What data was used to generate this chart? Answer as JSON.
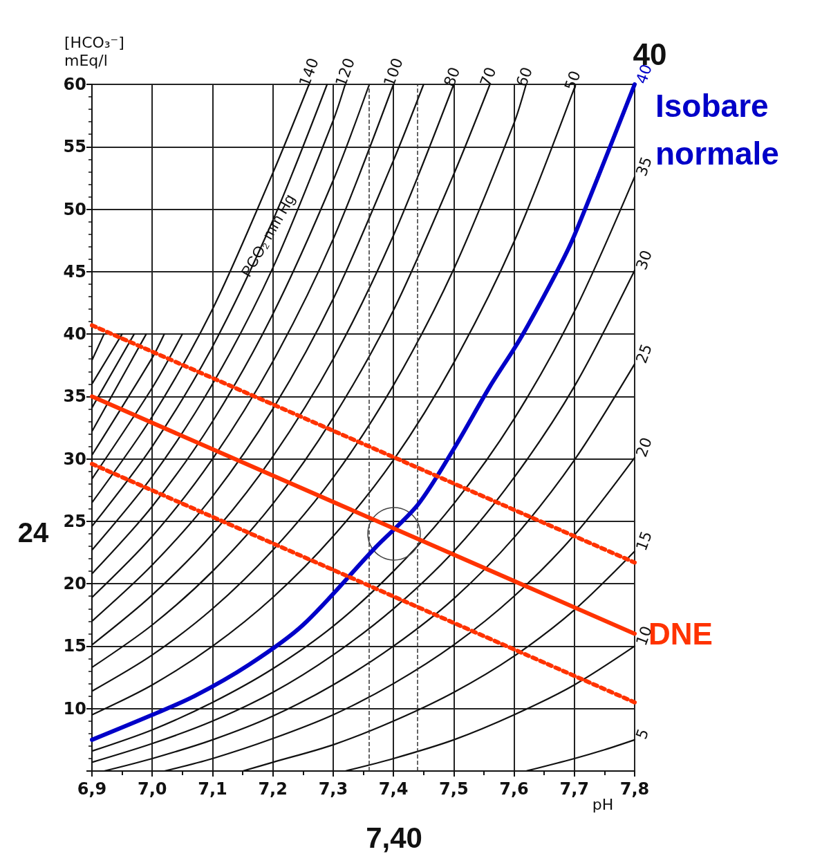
{
  "chart_data": {
    "type": "line",
    "xlabel": "pH",
    "ylabel": "[HCO₃⁻]\nmEq/l",
    "annotations": [
      "40",
      "Isobare normale",
      "PCO₂ mm Hg",
      "24",
      "7,40"
    ],
    "xlim": [
      6.9,
      7.8
    ],
    "xticks": [
      {
        "value": 6.9,
        "label": "6,9"
      },
      {
        "value": 7.0,
        "label": "7,0"
      },
      {
        "value": 7.1,
        "label": "7,1"
      },
      {
        "value": 7.2,
        "label": "7,2"
      },
      {
        "value": 7.3,
        "label": "7,3"
      },
      {
        "value": 7.4,
        "label": "7,4"
      },
      {
        "value": 7.5,
        "label": "7,5"
      },
      {
        "value": 7.6,
        "label": "7,6"
      },
      {
        "value": 7.7,
        "label": "7,7"
      },
      {
        "value": 7.8,
        "label": "7,8"
      }
    ],
    "ylim": [
      5,
      60
    ],
    "yticks": [
      {
        "value": 5,
        "label": null
      },
      10,
      15,
      20,
      25,
      30,
      35,
      40,
      45,
      50,
      55,
      60
    ],
    "grid": true,
    "legend": false,
    "line_style": "solid",
    "ref_lines": [
      {
        "axis": "x",
        "value": 7.36,
        "line_style": "dashed",
        "color": "#333333"
      },
      {
        "axis": "x",
        "value": 7.44,
        "line_style": "dashed",
        "color": "#333333"
      }
    ],
    "series": [
      {
        "name": "5",
        "color": "#111111",
        "x": [
          7.62,
          7.7,
          7.75,
          7.8
        ],
        "values": [
          5,
          6.0,
          6.7,
          7.5
        ]
      },
      {
        "name": "10",
        "color": "#111111",
        "x": [
          7.32,
          7.4,
          7.5,
          7.6,
          7.7,
          7.8
        ],
        "values": [
          5,
          6.0,
          7.5,
          9.5,
          11.9,
          15.0
        ]
      },
      {
        "name": "15",
        "color": "#111111",
        "x": [
          7.15,
          7.2,
          7.3,
          7.4,
          7.5,
          7.6,
          7.7,
          7.8
        ],
        "values": [
          5,
          5.7,
          7.1,
          9.0,
          11.3,
          14.2,
          17.9,
          22.6
        ]
      },
      {
        "name": "20",
        "color": "#111111",
        "x": [
          7.02,
          7.1,
          7.2,
          7.3,
          7.4,
          7.5,
          7.6,
          7.7,
          7.8
        ],
        "values": [
          5,
          6.0,
          7.6,
          9.5,
          12.0,
          15.1,
          19.0,
          23.9,
          30.1
        ]
      },
      {
        "name": "25",
        "color": "#111111",
        "x": [
          6.92,
          7.0,
          7.1,
          7.2,
          7.3,
          7.4,
          7.5,
          7.6,
          7.7,
          7.8
        ],
        "values": [
          5,
          6.0,
          7.5,
          9.4,
          11.9,
          15.0,
          18.8,
          23.7,
          29.9,
          37.6
        ]
      },
      {
        "name": "30",
        "color": "#111111",
        "x": [
          6.9,
          7.0,
          7.1,
          7.2,
          7.3,
          7.4,
          7.5,
          7.6,
          7.7,
          7.8
        ],
        "values": [
          5.7,
          7.2,
          9.0,
          11.3,
          14.3,
          18.0,
          22.6,
          28.5,
          35.8,
          45.1
        ]
      },
      {
        "name": "35",
        "color": "#111111",
        "x": [
          6.9,
          7.0,
          7.1,
          7.2,
          7.3,
          7.4,
          7.5,
          7.6,
          7.7,
          7.8
        ],
        "values": [
          6.6,
          8.3,
          10.5,
          13.2,
          16.6,
          21.0,
          26.4,
          33.2,
          41.8,
          52.6
        ]
      },
      {
        "name": "50",
        "color": "#111111",
        "x": [
          6.9,
          7.0,
          7.1,
          7.2,
          7.3,
          7.4,
          7.5,
          7.6,
          7.7
        ],
        "values": [
          9.5,
          11.9,
          15.0,
          18.9,
          23.8,
          29.9,
          37.7,
          47.4,
          59.7
        ]
      },
      {
        "name": "60",
        "color": "#111111",
        "x": [
          6.9,
          7.0,
          7.1,
          7.2,
          7.3,
          7.4,
          7.5,
          7.6,
          7.62
        ],
        "values": [
          11.4,
          14.3,
          18.0,
          22.7,
          28.5,
          35.9,
          45.2,
          56.9,
          60
        ]
      },
      {
        "name": "70",
        "color": "#111111",
        "x": [
          6.9,
          7.0,
          7.1,
          7.2,
          7.3,
          7.4,
          7.5,
          7.56
        ],
        "values": [
          13.3,
          16.7,
          21.0,
          26.4,
          33.3,
          41.9,
          52.8,
          60
        ]
      },
      {
        "name": "80",
        "color": "#111111",
        "x": [
          6.9,
          7.0,
          7.1,
          7.2,
          7.3,
          7.4,
          7.5
        ],
        "values": [
          15.1,
          19.1,
          24.0,
          30.2,
          38.0,
          47.9,
          60
        ]
      },
      {
        "color": "#111111",
        "x": [
          6.9,
          7.0,
          7.1,
          7.2,
          7.3,
          7.4,
          7.45
        ],
        "values": [
          17.0,
          21.5,
          27.0,
          34.0,
          42.8,
          53.9,
          60
        ]
      },
      {
        "name": "100",
        "color": "#111111",
        "x": [
          6.9,
          7.0,
          7.1,
          7.2,
          7.3,
          7.4
        ],
        "values": [
          18.9,
          23.8,
          30.0,
          37.8,
          47.6,
          60
        ]
      },
      {
        "color": "#111111",
        "x": [
          6.9,
          7.0,
          7.1,
          7.2,
          7.3,
          7.36
        ],
        "values": [
          20.8,
          26.2,
          33.0,
          41.6,
          52.3,
          60
        ]
      },
      {
        "name": "120",
        "color": "#111111",
        "x": [
          6.9,
          7.0,
          7.1,
          7.2,
          7.3,
          7.32
        ],
        "values": [
          22.7,
          28.6,
          36.0,
          45.3,
          57.1,
          60
        ]
      },
      {
        "color": "#111111",
        "x": [
          6.9,
          7.0,
          7.1,
          7.2,
          7.29
        ],
        "values": [
          24.6,
          31.0,
          39.0,
          49.1,
          60
        ]
      },
      {
        "name": "140",
        "color": "#111111",
        "x": [
          6.9,
          7.0,
          7.1,
          7.2,
          7.26
        ],
        "values": [
          26.5,
          33.4,
          42.0,
          52.9,
          60
        ]
      },
      {
        "color": "#111111",
        "x": [
          6.9,
          7.0,
          7.05
        ],
        "values": [
          28.4,
          35.7,
          40
        ]
      },
      {
        "color": "#111111",
        "x": [
          6.9,
          7.0,
          7.02
        ],
        "values": [
          30.3,
          38.1,
          40
        ]
      },
      {
        "color": "#111111",
        "x": [
          6.9,
          6.99
        ],
        "values": [
          32.2,
          40
        ]
      },
      {
        "color": "#111111",
        "x": [
          6.9,
          6.97
        ],
        "values": [
          34.1,
          40
        ]
      },
      {
        "color": "#111111",
        "x": [
          6.9,
          6.95
        ],
        "values": [
          36.0,
          40
        ]
      },
      {
        "color": "#111111",
        "x": [
          6.9,
          6.92
        ],
        "values": [
          37.9,
          40
        ]
      },
      {
        "name": "40",
        "color": "#0000c8",
        "x": [
          6.9,
          7.0,
          7.07,
          7.16,
          7.25,
          7.37,
          7.44,
          7.5,
          7.56,
          7.61,
          7.67,
          7.7,
          7.8
        ],
        "values": [
          7.5,
          9.5,
          11.0,
          13.5,
          16.7,
          22.9,
          26.3,
          30.8,
          35.8,
          39.6,
          44.9,
          47.9,
          60
        ]
      },
      {
        "name": "DNE",
        "color": "#ff3300",
        "x": [
          6.9,
          7.8
        ],
        "values": [
          35,
          16
        ]
      },
      {
        "color": "#ff3300",
        "line_style": "dotted",
        "x": [
          6.9,
          7.8
        ],
        "values": [
          40.7,
          21.7
        ]
      },
      {
        "color": "#ff3300",
        "line_style": "dotted",
        "x": [
          6.9,
          7.8
        ],
        "values": [
          29.6,
          10.5
        ]
      }
    ]
  }
}
